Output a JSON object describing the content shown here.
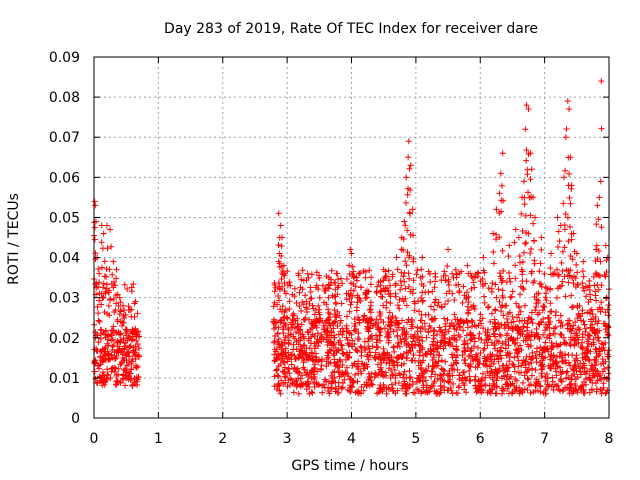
{
  "chart_data": {
    "type": "scatter",
    "title": "Day 283 of 2019, Rate Of TEC Index for receiver dare",
    "xlabel": "GPS time / hours",
    "ylabel": "ROTI / TECUs",
    "xlim": [
      0,
      8
    ],
    "ylim": [
      0,
      0.09
    ],
    "grid": true,
    "marker": "+",
    "color": "#ff0000",
    "x_ticks": [
      {
        "value": 0,
        "label": "0"
      },
      {
        "value": 1,
        "label": "1"
      },
      {
        "value": 2,
        "label": "2"
      },
      {
        "value": 3,
        "label": "3"
      },
      {
        "value": 4,
        "label": "4"
      },
      {
        "value": 5,
        "label": "5"
      },
      {
        "value": 6,
        "label": "6"
      },
      {
        "value": 7,
        "label": "7"
      },
      {
        "value": 8,
        "label": "8"
      }
    ],
    "y_ticks": [
      {
        "value": 0,
        "label": "0"
      },
      {
        "value": 0.01,
        "label": "0.01"
      },
      {
        "value": 0.02,
        "label": "0.02"
      },
      {
        "value": 0.03,
        "label": "0.03"
      },
      {
        "value": 0.04,
        "label": "0.04"
      },
      {
        "value": 0.05,
        "label": "0.05"
      },
      {
        "value": 0.06,
        "label": "0.06"
      },
      {
        "value": 0.07,
        "label": "0.07"
      },
      {
        "value": 0.08,
        "label": "0.08"
      },
      {
        "value": 0.09,
        "label": "0.09"
      }
    ],
    "series": [
      {
        "name": "ROTI",
        "segments": [
          {
            "x_range": [
              0.0,
              0.7
            ],
            "baseline": [
              0.008,
              0.022
            ]
          },
          {
            "x_range": [
              2.78,
              8.0
            ],
            "baseline": [
              0.006,
              0.025
            ]
          }
        ],
        "points": [
          {
            "x": 0.01,
            "y": 0.054
          },
          {
            "x": 0.02,
            "y": 0.053
          },
          {
            "x": 0.03,
            "y": 0.049
          },
          {
            "x": 0.05,
            "y": 0.04
          },
          {
            "x": 0.08,
            "y": 0.036
          },
          {
            "x": 0.12,
            "y": 0.048
          },
          {
            "x": 0.15,
            "y": 0.046
          },
          {
            "x": 0.2,
            "y": 0.048
          },
          {
            "x": 0.25,
            "y": 0.047
          },
          {
            "x": 0.3,
            "y": 0.039
          },
          {
            "x": 0.35,
            "y": 0.037
          },
          {
            "x": 0.4,
            "y": 0.03
          },
          {
            "x": 0.45,
            "y": 0.028
          },
          {
            "x": 0.5,
            "y": 0.022
          },
          {
            "x": 0.6,
            "y": 0.021
          },
          {
            "x": 2.87,
            "y": 0.051
          },
          {
            "x": 2.9,
            "y": 0.048
          },
          {
            "x": 2.92,
            "y": 0.045
          },
          {
            "x": 2.88,
            "y": 0.041
          },
          {
            "x": 2.95,
            "y": 0.038
          },
          {
            "x": 3.1,
            "y": 0.026
          },
          {
            "x": 3.3,
            "y": 0.029
          },
          {
            "x": 3.5,
            "y": 0.027
          },
          {
            "x": 3.65,
            "y": 0.035
          },
          {
            "x": 3.75,
            "y": 0.032
          },
          {
            "x": 3.78,
            "y": 0.036
          },
          {
            "x": 3.98,
            "y": 0.042
          },
          {
            "x": 4.0,
            "y": 0.041
          },
          {
            "x": 4.1,
            "y": 0.03
          },
          {
            "x": 4.3,
            "y": 0.028
          },
          {
            "x": 4.45,
            "y": 0.034
          },
          {
            "x": 4.5,
            "y": 0.037
          },
          {
            "x": 4.6,
            "y": 0.033
          },
          {
            "x": 4.7,
            "y": 0.04
          },
          {
            "x": 4.78,
            "y": 0.045
          },
          {
            "x": 4.82,
            "y": 0.049
          },
          {
            "x": 4.85,
            "y": 0.06
          },
          {
            "x": 4.88,
            "y": 0.065
          },
          {
            "x": 4.89,
            "y": 0.069
          },
          {
            "x": 4.92,
            "y": 0.063
          },
          {
            "x": 4.95,
            "y": 0.052
          },
          {
            "x": 5.1,
            "y": 0.04
          },
          {
            "x": 5.3,
            "y": 0.036
          },
          {
            "x": 5.5,
            "y": 0.042
          },
          {
            "x": 5.8,
            "y": 0.038
          },
          {
            "x": 6.05,
            "y": 0.04
          },
          {
            "x": 6.2,
            "y": 0.046
          },
          {
            "x": 6.25,
            "y": 0.052
          },
          {
            "x": 6.3,
            "y": 0.056
          },
          {
            "x": 6.32,
            "y": 0.061
          },
          {
            "x": 6.35,
            "y": 0.066
          },
          {
            "x": 6.45,
            "y": 0.043
          },
          {
            "x": 6.55,
            "y": 0.047
          },
          {
            "x": 6.6,
            "y": 0.045
          },
          {
            "x": 6.65,
            "y": 0.055
          },
          {
            "x": 6.68,
            "y": 0.059
          },
          {
            "x": 6.7,
            "y": 0.072
          },
          {
            "x": 6.72,
            "y": 0.078
          },
          {
            "x": 6.75,
            "y": 0.077
          },
          {
            "x": 6.78,
            "y": 0.066
          },
          {
            "x": 6.8,
            "y": 0.062
          },
          {
            "x": 6.82,
            "y": 0.055
          },
          {
            "x": 6.85,
            "y": 0.05
          },
          {
            "x": 6.95,
            "y": 0.045
          },
          {
            "x": 7.1,
            "y": 0.041
          },
          {
            "x": 7.2,
            "y": 0.05
          },
          {
            "x": 7.25,
            "y": 0.048
          },
          {
            "x": 7.3,
            "y": 0.06
          },
          {
            "x": 7.33,
            "y": 0.07
          },
          {
            "x": 7.36,
            "y": 0.079
          },
          {
            "x": 7.38,
            "y": 0.077
          },
          {
            "x": 7.4,
            "y": 0.065
          },
          {
            "x": 7.42,
            "y": 0.058
          },
          {
            "x": 7.45,
            "y": 0.046
          },
          {
            "x": 7.5,
            "y": 0.041
          },
          {
            "x": 7.6,
            "y": 0.039
          },
          {
            "x": 7.7,
            "y": 0.033
          },
          {
            "x": 7.8,
            "y": 0.042
          },
          {
            "x": 7.82,
            "y": 0.053
          },
          {
            "x": 7.85,
            "y": 0.055
          },
          {
            "x": 7.88,
            "y": 0.084
          },
          {
            "x": 7.95,
            "y": 0.043
          },
          {
            "x": 7.98,
            "y": 0.04
          }
        ]
      }
    ]
  }
}
